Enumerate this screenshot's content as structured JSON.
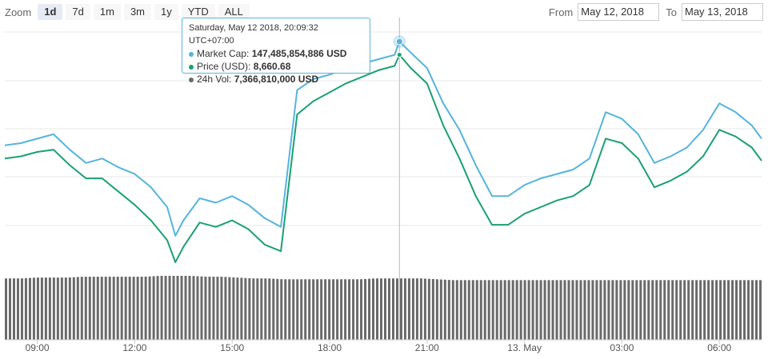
{
  "zoom": {
    "label": "Zoom",
    "buttons": [
      "1d",
      "7d",
      "1m",
      "3m",
      "1y",
      "YTD",
      "ALL"
    ],
    "active": "1d"
  },
  "range": {
    "from_label": "From",
    "from_value": "May 12, 2018",
    "to_label": "To",
    "to_value": "May 13, 2018"
  },
  "tooltip": {
    "date": "Saturday, May 12 2018, 20:09:32 UTC+07:00",
    "market_cap_label": "Market Cap:",
    "market_cap_value": "147,485,854,886 USD",
    "price_label": "Price (USD):",
    "price_value": "8,660.68",
    "volume_label": "24h Vol:",
    "volume_value": "7,366,810,000 USD"
  },
  "colors": {
    "market_cap": "#55b4dd",
    "price": "#1aa074",
    "volume": "#6a6a6a",
    "grid": "#e8e8e8"
  },
  "chart_data": {
    "type": "line",
    "x_tick_labels": [
      "09:00",
      "12:00",
      "15:00",
      "18:00",
      "21:00",
      "13. May",
      "03:00",
      "06:00"
    ],
    "x_ticks_hours": [
      9,
      12,
      15,
      18,
      21,
      24,
      27,
      30
    ],
    "xlim_hours": [
      8,
      31.3
    ],
    "x": [
      8,
      8.5,
      9,
      9.5,
      10,
      10.5,
      11,
      11.5,
      12,
      12.5,
      13,
      13.25,
      13.5,
      14,
      14.5,
      15,
      15.5,
      16,
      16.5,
      17,
      17.5,
      18,
      18.5,
      19,
      19.5,
      20,
      20.15,
      20.5,
      21,
      21.5,
      22,
      22.5,
      23,
      23.5,
      24,
      24.5,
      25,
      25.5,
      26,
      26.5,
      27,
      27.5,
      28,
      28.5,
      29,
      29.5,
      30,
      30.5,
      31,
      31.3
    ],
    "series": [
      {
        "name": "Market Cap",
        "color": "#55b4dd",
        "values": [
          0.53,
          0.54,
          0.56,
          0.58,
          0.51,
          0.45,
          0.47,
          0.43,
          0.4,
          0.34,
          0.25,
          0.12,
          0.19,
          0.29,
          0.27,
          0.3,
          0.26,
          0.2,
          0.16,
          0.78,
          0.83,
          0.85,
          0.88,
          0.9,
          0.92,
          0.94,
          1.0,
          0.95,
          0.88,
          0.72,
          0.6,
          0.44,
          0.3,
          0.3,
          0.35,
          0.38,
          0.4,
          0.42,
          0.47,
          0.68,
          0.65,
          0.58,
          0.45,
          0.48,
          0.52,
          0.6,
          0.72,
          0.68,
          0.62,
          0.56
        ]
      },
      {
        "name": "Price (USD)",
        "color": "#1aa074",
        "values": [
          0.47,
          0.48,
          0.5,
          0.51,
          0.44,
          0.38,
          0.38,
          0.32,
          0.26,
          0.19,
          0.1,
          0.0,
          0.07,
          0.18,
          0.16,
          0.19,
          0.15,
          0.08,
          0.05,
          0.67,
          0.73,
          0.77,
          0.81,
          0.84,
          0.87,
          0.89,
          0.94,
          0.88,
          0.81,
          0.62,
          0.47,
          0.3,
          0.17,
          0.17,
          0.22,
          0.25,
          0.28,
          0.3,
          0.35,
          0.56,
          0.54,
          0.47,
          0.34,
          0.37,
          0.41,
          0.48,
          0.6,
          0.57,
          0.52,
          0.46
        ]
      }
    ],
    "volume_values": [
      0.72,
      0.72,
      0.73,
      0.73,
      0.73,
      0.74,
      0.74,
      0.74,
      0.74,
      0.74,
      0.75,
      0.75,
      0.75,
      0.74,
      0.74,
      0.73,
      0.72,
      0.72,
      0.71,
      0.71,
      0.71,
      0.71,
      0.71,
      0.71,
      0.72,
      0.72,
      0.72,
      0.72,
      0.71,
      0.7,
      0.7,
      0.7,
      0.7,
      0.7,
      0.7,
      0.7,
      0.7,
      0.7,
      0.7,
      0.7,
      0.7,
      0.7,
      0.7,
      0.7,
      0.7,
      0.7,
      0.7,
      0.7,
      0.7,
      0.7
    ],
    "highlight_hour": 20.15,
    "grid": true
  }
}
